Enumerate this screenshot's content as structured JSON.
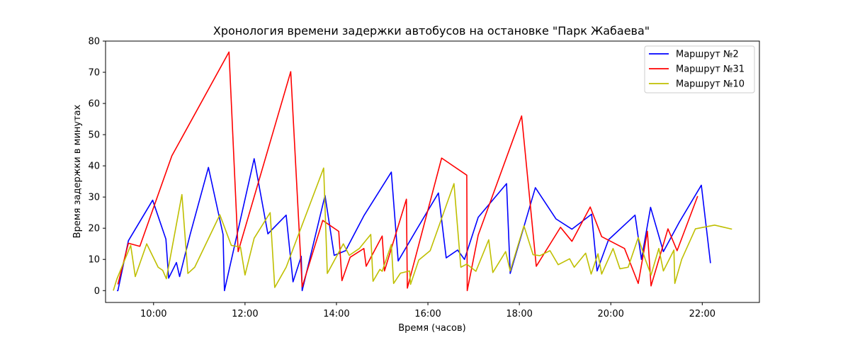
{
  "chart_data": {
    "type": "line",
    "title": "Хронология времени задержки автобусов на остановке \"Парк Жабаева\"",
    "xlabel": "Время (часов)",
    "ylabel": "Время задержки в минутах",
    "xlim": [
      8.95,
      23.25
    ],
    "ylim": [
      -3.8,
      80
    ],
    "xticks": [
      10,
      12,
      14,
      16,
      18,
      20,
      22
    ],
    "xtick_labels": [
      "10:00",
      "12:00",
      "14:00",
      "16:00",
      "18:00",
      "20:00",
      "22:00"
    ],
    "yticks": [
      0,
      10,
      20,
      30,
      40,
      50,
      60,
      70,
      80
    ],
    "ytick_labels": [
      "0",
      "10",
      "20",
      "30",
      "40",
      "50",
      "60",
      "70",
      "80"
    ],
    "legend_position": "top-right",
    "grid": false,
    "series": [
      {
        "name": "Маршрут №2",
        "color": "#0000ff",
        "points": [
          [
            9.2,
            0
          ],
          [
            9.22,
            0
          ],
          [
            9.45,
            16
          ],
          [
            9.98,
            29
          ],
          [
            10.27,
            16.5
          ],
          [
            10.33,
            4
          ],
          [
            10.5,
            9
          ],
          [
            10.57,
            4.5
          ],
          [
            10.8,
            18
          ],
          [
            11.2,
            39.5
          ],
          [
            11.52,
            18
          ],
          [
            11.55,
            0
          ],
          [
            12.2,
            42.3
          ],
          [
            12.5,
            18.2
          ],
          [
            12.9,
            24.2
          ],
          [
            13.05,
            2.8
          ],
          [
            13.23,
            11
          ],
          [
            13.25,
            0
          ],
          [
            13.75,
            30.5
          ],
          [
            13.95,
            11.3
          ],
          [
            14.2,
            12.8
          ],
          [
            14.6,
            24
          ],
          [
            15.2,
            38
          ],
          [
            15.35,
            9.5
          ],
          [
            15.75,
            19.5
          ],
          [
            16.23,
            31.3
          ],
          [
            16.4,
            10.5
          ],
          [
            16.65,
            13
          ],
          [
            16.8,
            10
          ],
          [
            17.1,
            23.5
          ],
          [
            17.72,
            34.3
          ],
          [
            17.8,
            5.5
          ],
          [
            18.35,
            33
          ],
          [
            18.8,
            23
          ],
          [
            19.15,
            19.7
          ],
          [
            19.58,
            24.5
          ],
          [
            19.7,
            6.3
          ],
          [
            19.95,
            16.3
          ],
          [
            20.53,
            24.2
          ],
          [
            20.67,
            10
          ],
          [
            20.87,
            26.7
          ],
          [
            21.15,
            12.5
          ],
          [
            21.5,
            22
          ],
          [
            21.98,
            33.8
          ],
          [
            22.18,
            8.8
          ]
        ]
      },
      {
        "name": "Маршрут №31",
        "color": "#ff0000",
        "points": [
          [
            9.22,
            2
          ],
          [
            9.45,
            15.2
          ],
          [
            9.7,
            14.2
          ],
          [
            10.4,
            43.2
          ],
          [
            11.65,
            76.5
          ],
          [
            11.85,
            12.5
          ],
          [
            13.0,
            70.2
          ],
          [
            13.25,
            1.2
          ],
          [
            13.7,
            22.5
          ],
          [
            14.05,
            19
          ],
          [
            14.12,
            3.2
          ],
          [
            14.3,
            10.7
          ],
          [
            14.6,
            13.5
          ],
          [
            14.65,
            7.8
          ],
          [
            15.0,
            17.5
          ],
          [
            15.05,
            6.3
          ],
          [
            15.53,
            29.3
          ],
          [
            15.55,
            0.8
          ],
          [
            16.3,
            42.5
          ],
          [
            16.85,
            37
          ],
          [
            16.86,
            0
          ],
          [
            17.1,
            17.8
          ],
          [
            18.05,
            56
          ],
          [
            18.37,
            7.8
          ],
          [
            18.9,
            20.3
          ],
          [
            19.15,
            15.8
          ],
          [
            19.55,
            26.8
          ],
          [
            19.8,
            17.3
          ],
          [
            20.3,
            13.5
          ],
          [
            20.6,
            2.3
          ],
          [
            20.8,
            19
          ],
          [
            20.88,
            1.5
          ],
          [
            21.25,
            19.8
          ],
          [
            21.45,
            12.8
          ],
          [
            21.9,
            30.3
          ]
        ]
      },
      {
        "name": "Маршрут №10",
        "color": "#bfbf00",
        "points": [
          [
            9.12,
            0
          ],
          [
            9.2,
            3.8
          ],
          [
            9.5,
            14.5
          ],
          [
            9.6,
            4.5
          ],
          [
            9.85,
            15
          ],
          [
            10.1,
            7.5
          ],
          [
            10.2,
            6.5
          ],
          [
            10.28,
            3.8
          ],
          [
            10.62,
            30.8
          ],
          [
            10.75,
            5.5
          ],
          [
            10.9,
            7.5
          ],
          [
            11.45,
            24.3
          ],
          [
            11.7,
            14.5
          ],
          [
            11.9,
            14
          ],
          [
            12.0,
            5
          ],
          [
            12.2,
            16.8
          ],
          [
            12.55,
            25
          ],
          [
            12.65,
            1
          ],
          [
            12.9,
            7.5
          ],
          [
            13.72,
            39.3
          ],
          [
            13.8,
            5.5
          ],
          [
            14.15,
            15
          ],
          [
            14.28,
            11.3
          ],
          [
            14.5,
            13.5
          ],
          [
            14.75,
            18
          ],
          [
            14.8,
            3
          ],
          [
            14.95,
            6.8
          ],
          [
            15.0,
            6.2
          ],
          [
            15.2,
            14.8
          ],
          [
            15.25,
            2.3
          ],
          [
            15.4,
            5.6
          ],
          [
            15.6,
            6.3
          ],
          [
            15.62,
            2
          ],
          [
            15.8,
            9.8
          ],
          [
            16.05,
            12.8
          ],
          [
            16.57,
            34.3
          ],
          [
            16.72,
            7.5
          ],
          [
            16.85,
            8.5
          ],
          [
            17.05,
            6.2
          ],
          [
            17.33,
            16.3
          ],
          [
            17.42,
            5.8
          ],
          [
            17.7,
            12.5
          ],
          [
            17.8,
            6.3
          ],
          [
            18.1,
            20.8
          ],
          [
            18.3,
            11.5
          ],
          [
            18.45,
            11.2
          ],
          [
            18.67,
            12.8
          ],
          [
            18.85,
            8.3
          ],
          [
            19.1,
            10.2
          ],
          [
            19.2,
            7.5
          ],
          [
            19.45,
            12
          ],
          [
            19.57,
            5.3
          ],
          [
            19.72,
            11.8
          ],
          [
            19.8,
            5.3
          ],
          [
            20.05,
            13.5
          ],
          [
            20.2,
            7
          ],
          [
            20.38,
            7.5
          ],
          [
            20.6,
            17
          ],
          [
            20.75,
            10.2
          ],
          [
            20.88,
            5
          ],
          [
            21.05,
            13.5
          ],
          [
            21.15,
            6.3
          ],
          [
            21.38,
            13
          ],
          [
            21.4,
            2.3
          ],
          [
            21.55,
            10
          ],
          [
            21.85,
            19.8
          ],
          [
            22.27,
            21
          ],
          [
            22.65,
            19.7
          ]
        ]
      }
    ]
  }
}
